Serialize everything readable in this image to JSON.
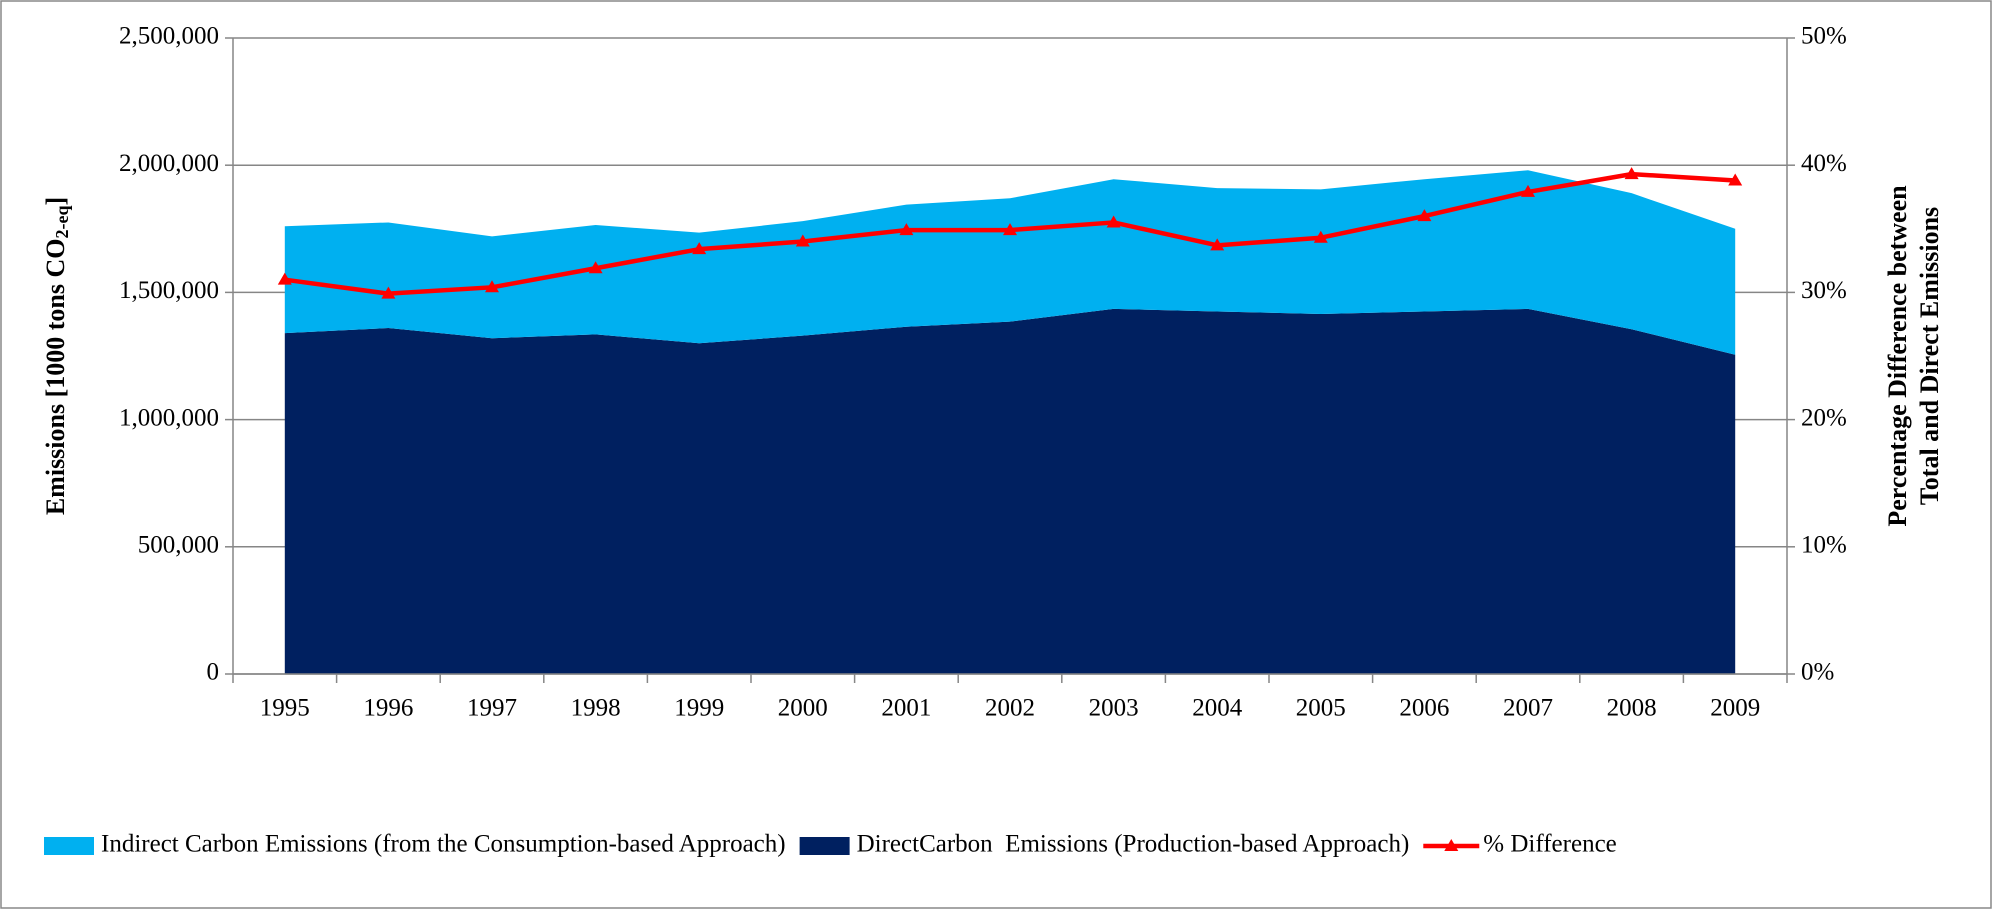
{
  "chart_data": {
    "type": "area",
    "categories": [
      "1995",
      "1996",
      "1997",
      "1998",
      "1999",
      "2000",
      "2001",
      "2002",
      "2003",
      "2004",
      "2005",
      "2006",
      "2007",
      "2008",
      "2009"
    ],
    "y_label": {
      "main": "Emissions [1000 tons CO",
      "sub": "2-eq",
      "end": "]"
    },
    "y2_label": [
      "Percentage Difference between",
      "Total and Direct Emissions"
    ],
    "ylim": [
      0,
      2500000
    ],
    "yticks": [
      {
        "value": 0,
        "label": "0"
      },
      {
        "value": 500000,
        "label": "500,000"
      },
      {
        "value": 1000000,
        "label": "1,000,000"
      },
      {
        "value": 1500000,
        "label": "1,500,000"
      },
      {
        "value": 2000000,
        "label": "2,000,000"
      },
      {
        "value": 2500000,
        "label": "2,500,000"
      }
    ],
    "y2lim": [
      0,
      50
    ],
    "y2ticks": [
      {
        "value": 0,
        "label": "0%"
      },
      {
        "value": 10,
        "label": "10%"
      },
      {
        "value": 20,
        "label": "20%"
      },
      {
        "value": 30,
        "label": "30%"
      },
      {
        "value": 40,
        "label": "40%"
      },
      {
        "value": 50,
        "label": "50%"
      }
    ],
    "grid": true,
    "legend": "bottom",
    "series": [
      {
        "name": "Indirect Carbon Emissions (from the Consumption-based Approach)",
        "color": "#00b0f0",
        "type": "area",
        "values": [
          420000,
          415000,
          400000,
          430000,
          435000,
          450000,
          480000,
          485000,
          510000,
          485000,
          490000,
          520000,
          545000,
          535000,
          495000
        ]
      },
      {
        "name": "DirectCarbon  Emissions (Production-based Approach)",
        "color": "#002060",
        "type": "area",
        "values": [
          1340000,
          1360000,
          1320000,
          1335000,
          1300000,
          1330000,
          1365000,
          1385000,
          1435000,
          1425000,
          1415000,
          1425000,
          1435000,
          1355000,
          1255000
        ]
      },
      {
        "name": "% Difference",
        "color": "#ff0000",
        "type": "line",
        "axis": "y2",
        "values": [
          31,
          29.9,
          30.4,
          31.9,
          33.4,
          34,
          34.9,
          34.9,
          35.5,
          33.7,
          34.3,
          36,
          37.9,
          39.3,
          38.8
        ]
      }
    ]
  }
}
